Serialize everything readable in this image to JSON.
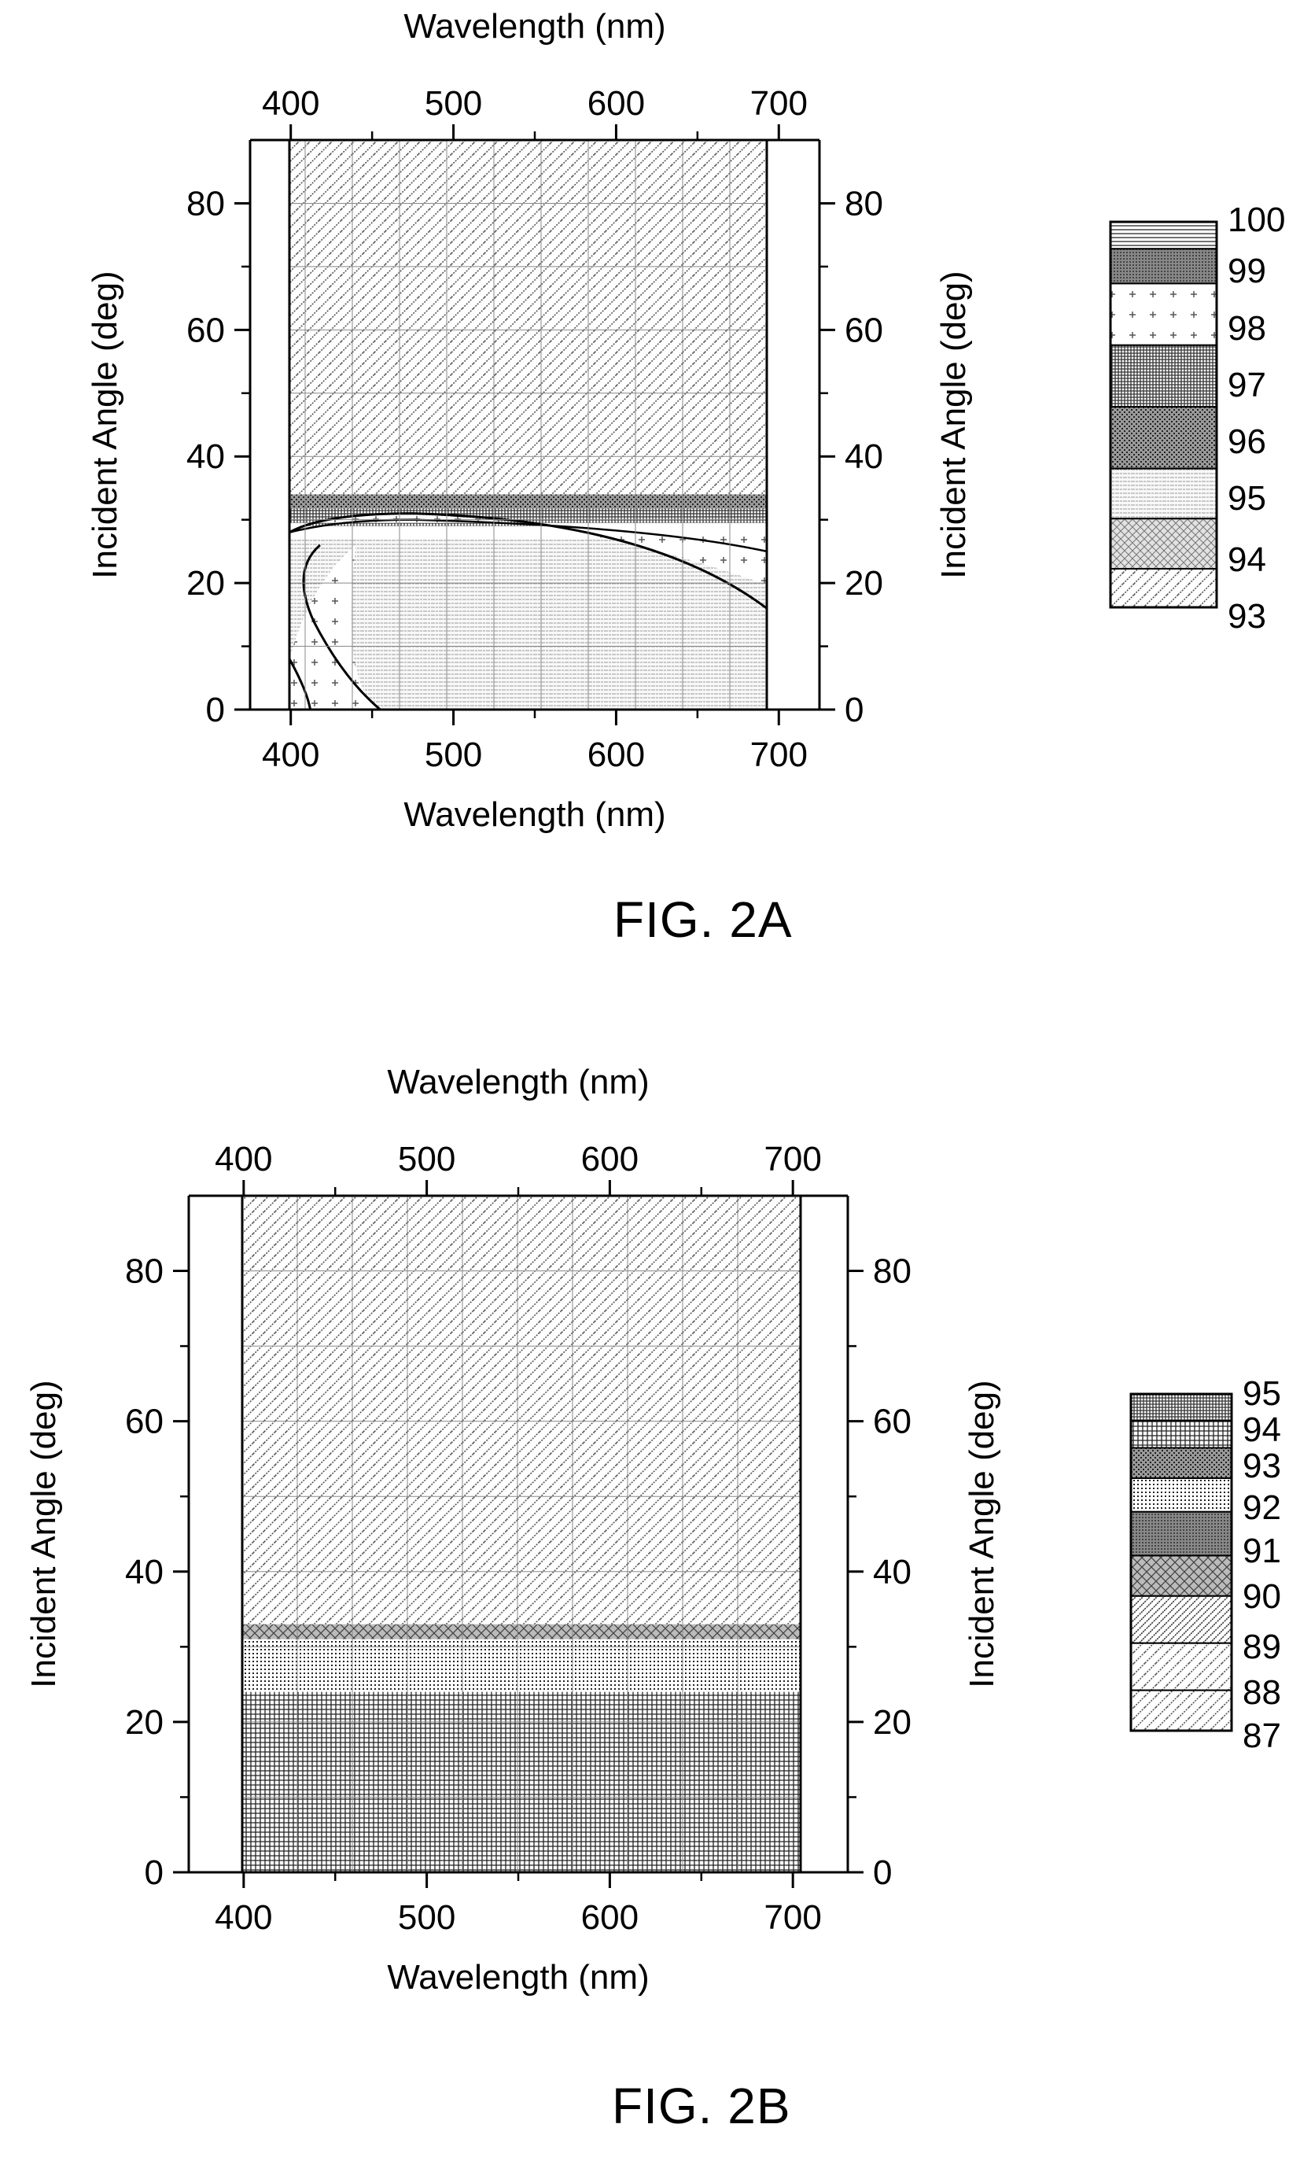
{
  "figures": [
    {
      "caption": "FIG. 2A"
    },
    {
      "caption": "FIG. 2B"
    }
  ],
  "chart_data": [
    {
      "type": "heatmap",
      "figure": "FIG. 2A",
      "xlabel": "Wavelength (nm)",
      "x2label": "Wavelength (nm)",
      "ylabel": "Incident Angle (deg)",
      "y2label": "Incident Angle (deg)",
      "xlim": [
        375,
        725
      ],
      "ylim": [
        0,
        90
      ],
      "xticks": [
        400,
        500,
        600,
        700
      ],
      "yticks": [
        0,
        20,
        40,
        60,
        80
      ],
      "grid": true,
      "legend": {
        "placement": "right",
        "levels": [
          "100",
          "99",
          "98",
          "97",
          "96",
          "95",
          "94",
          "93"
        ]
      },
      "regions": [
        {
          "level": "93",
          "description": "plateau",
          "angle_range_deg": [
            34,
            90
          ],
          "wavelength_range_nm": [
            400,
            700
          ]
        },
        {
          "level": "96-100",
          "description": "transition band",
          "angle_range_deg": [
            29,
            34
          ],
          "wavelength_range_nm": [
            400,
            700
          ]
        },
        {
          "level": "99",
          "description": "contour ring",
          "boundary_angle_at_400nm": 28,
          "boundary_angle_at_700nm": 16
        },
        {
          "level": "98",
          "description": "low-angle short-wavelength pocket",
          "wavelength_range_nm": [
            400,
            455
          ],
          "angle_range_deg": [
            0,
            22
          ]
        },
        {
          "level": "95",
          "description": "low-angle plateau",
          "angle_range_deg": [
            0,
            27
          ],
          "wavelength_range_nm": [
            430,
            700
          ]
        }
      ]
    },
    {
      "type": "heatmap",
      "figure": "FIG. 2B",
      "xlabel": "Wavelength (nm)",
      "x2label": "Wavelength (nm)",
      "ylabel": "Incident Angle (deg)",
      "y2label": "Incident Angle (deg)",
      "xlim": [
        370,
        730
      ],
      "ylim": [
        0,
        90
      ],
      "xticks": [
        400,
        500,
        600,
        700
      ],
      "yticks": [
        0,
        20,
        40,
        60,
        80
      ],
      "grid": true,
      "legend": {
        "placement": "right",
        "levels": [
          "95",
          "94",
          "93",
          "92",
          "91",
          "90",
          "89",
          "88",
          "87"
        ]
      },
      "regions": [
        {
          "level": "88",
          "description": "plateau",
          "angle_range_deg": [
            33,
            90
          ],
          "wavelength_range_nm": [
            400,
            700
          ]
        },
        {
          "level": "90",
          "description": "band",
          "angle_range_deg": [
            31,
            33
          ],
          "wavelength_range_nm": [
            400,
            700
          ]
        },
        {
          "level": "92",
          "description": "band",
          "angle_range_deg": [
            24,
            31
          ],
          "wavelength_range_nm": [
            400,
            700
          ]
        },
        {
          "level": "94",
          "description": "low-angle plateau",
          "angle_range_deg": [
            0,
            24
          ],
          "wavelength_range_nm": [
            400,
            700
          ]
        }
      ]
    }
  ]
}
